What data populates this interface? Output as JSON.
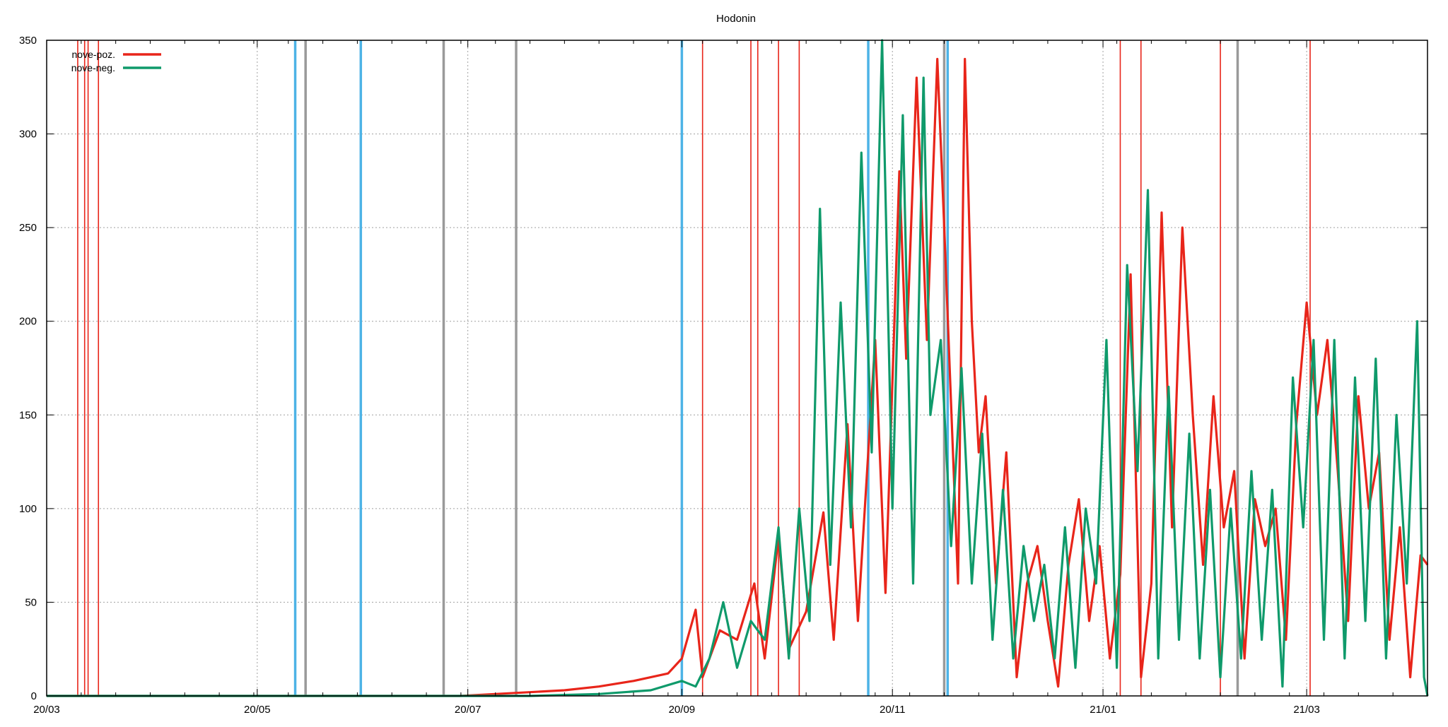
{
  "chart_data": {
    "type": "line",
    "title": "Hodonin",
    "xlabel": "",
    "ylabel": "",
    "x_domain_days": [
      0,
      400
    ],
    "ylim": [
      0,
      350
    ],
    "y_ticks": [
      0,
      50,
      100,
      150,
      200,
      250,
      300,
      350
    ],
    "x_ticks": [
      {
        "label": "20/03",
        "day": 0
      },
      {
        "label": "20/05",
        "day": 61
      },
      {
        "label": "20/07",
        "day": 122
      },
      {
        "label": "20/09",
        "day": 184
      },
      {
        "label": "20/11",
        "day": 245
      },
      {
        "label": "21/01",
        "day": 306
      },
      {
        "label": "21/03",
        "day": 365
      }
    ],
    "grid": true,
    "legend_position": "top-left",
    "series": [
      {
        "name": "nove-poz.",
        "color": "#e8251a",
        "points": [
          [
            0,
            0
          ],
          [
            10,
            0
          ],
          [
            20,
            0
          ],
          [
            30,
            0
          ],
          [
            40,
            0
          ],
          [
            50,
            0
          ],
          [
            60,
            0
          ],
          [
            70,
            0
          ],
          [
            80,
            0
          ],
          [
            90,
            0
          ],
          [
            100,
            0
          ],
          [
            110,
            0
          ],
          [
            120,
            0
          ],
          [
            130,
            1
          ],
          [
            140,
            2
          ],
          [
            150,
            3
          ],
          [
            160,
            5
          ],
          [
            170,
            8
          ],
          [
            180,
            12
          ],
          [
            184,
            20
          ],
          [
            188,
            46
          ],
          [
            190,
            10
          ],
          [
            195,
            35
          ],
          [
            200,
            30
          ],
          [
            205,
            60
          ],
          [
            208,
            20
          ],
          [
            212,
            85
          ],
          [
            215,
            25
          ],
          [
            220,
            45
          ],
          [
            225,
            98
          ],
          [
            228,
            30
          ],
          [
            232,
            145
          ],
          [
            235,
            40
          ],
          [
            240,
            190
          ],
          [
            243,
            55
          ],
          [
            247,
            280
          ],
          [
            249,
            180
          ],
          [
            252,
            330
          ],
          [
            255,
            190
          ],
          [
            258,
            340
          ],
          [
            260,
            250
          ],
          [
            264,
            60
          ],
          [
            266,
            340
          ],
          [
            268,
            200
          ],
          [
            270,
            130
          ],
          [
            272,
            160
          ],
          [
            275,
            60
          ],
          [
            278,
            130
          ],
          [
            281,
            10
          ],
          [
            284,
            60
          ],
          [
            287,
            80
          ],
          [
            290,
            40
          ],
          [
            293,
            5
          ],
          [
            296,
            70
          ],
          [
            299,
            105
          ],
          [
            302,
            40
          ],
          [
            305,
            80
          ],
          [
            308,
            20
          ],
          [
            311,
            65
          ],
          [
            314,
            225
          ],
          [
            317,
            10
          ],
          [
            320,
            60
          ],
          [
            323,
            258
          ],
          [
            326,
            90
          ],
          [
            329,
            250
          ],
          [
            332,
            150
          ],
          [
            335,
            70
          ],
          [
            338,
            160
          ],
          [
            341,
            90
          ],
          [
            344,
            120
          ],
          [
            347,
            20
          ],
          [
            350,
            105
          ],
          [
            353,
            80
          ],
          [
            356,
            100
          ],
          [
            359,
            30
          ],
          [
            362,
            145
          ],
          [
            365,
            210
          ],
          [
            368,
            150
          ],
          [
            371,
            190
          ],
          [
            374,
            120
          ],
          [
            377,
            40
          ],
          [
            380,
            160
          ],
          [
            383,
            100
          ],
          [
            386,
            130
          ],
          [
            389,
            30
          ],
          [
            392,
            90
          ],
          [
            395,
            10
          ],
          [
            398,
            75
          ],
          [
            400,
            70
          ]
        ]
      },
      {
        "name": "nove-neg.",
        "color": "#0f9a6b",
        "points": [
          [
            0,
            0
          ],
          [
            20,
            0
          ],
          [
            40,
            0
          ],
          [
            60,
            0
          ],
          [
            80,
            0
          ],
          [
            100,
            0
          ],
          [
            120,
            0
          ],
          [
            140,
            0
          ],
          [
            160,
            1
          ],
          [
            175,
            3
          ],
          [
            184,
            8
          ],
          [
            188,
            5
          ],
          [
            192,
            20
          ],
          [
            196,
            50
          ],
          [
            200,
            15
          ],
          [
            204,
            40
          ],
          [
            208,
            30
          ],
          [
            212,
            90
          ],
          [
            215,
            20
          ],
          [
            218,
            100
          ],
          [
            221,
            40
          ],
          [
            224,
            260
          ],
          [
            227,
            70
          ],
          [
            230,
            210
          ],
          [
            233,
            90
          ],
          [
            236,
            290
          ],
          [
            239,
            130
          ],
          [
            242,
            350
          ],
          [
            245,
            100
          ],
          [
            248,
            310
          ],
          [
            251,
            60
          ],
          [
            254,
            330
          ],
          [
            256,
            150
          ],
          [
            259,
            190
          ],
          [
            262,
            80
          ],
          [
            265,
            175
          ],
          [
            268,
            60
          ],
          [
            271,
            140
          ],
          [
            274,
            30
          ],
          [
            277,
            110
          ],
          [
            280,
            20
          ],
          [
            283,
            80
          ],
          [
            286,
            40
          ],
          [
            289,
            70
          ],
          [
            292,
            20
          ],
          [
            295,
            90
          ],
          [
            298,
            15
          ],
          [
            301,
            100
          ],
          [
            304,
            60
          ],
          [
            307,
            190
          ],
          [
            310,
            15
          ],
          [
            313,
            230
          ],
          [
            316,
            120
          ],
          [
            319,
            270
          ],
          [
            322,
            20
          ],
          [
            325,
            165
          ],
          [
            328,
            30
          ],
          [
            331,
            140
          ],
          [
            334,
            20
          ],
          [
            337,
            110
          ],
          [
            340,
            10
          ],
          [
            343,
            100
          ],
          [
            346,
            20
          ],
          [
            349,
            120
          ],
          [
            352,
            30
          ],
          [
            355,
            110
          ],
          [
            358,
            5
          ],
          [
            361,
            170
          ],
          [
            364,
            90
          ],
          [
            367,
            190
          ],
          [
            370,
            30
          ],
          [
            373,
            190
          ],
          [
            376,
            20
          ],
          [
            379,
            170
          ],
          [
            382,
            40
          ],
          [
            385,
            180
          ],
          [
            388,
            20
          ],
          [
            391,
            150
          ],
          [
            394,
            60
          ],
          [
            397,
            200
          ],
          [
            399,
            10
          ],
          [
            400,
            0
          ]
        ]
      }
    ],
    "vertical_markers": [
      {
        "type": "red-thin",
        "color": "#e8251a",
        "days": [
          9,
          11,
          12,
          15,
          190,
          204,
          206,
          212,
          218,
          311,
          317,
          340,
          366
        ]
      },
      {
        "type": "blue",
        "color": "#4db3e6",
        "days": [
          72,
          91,
          184,
          238,
          261
        ]
      },
      {
        "type": "gray",
        "color": "#9a9a9a",
        "days": [
          75,
          115,
          136,
          260,
          345
        ]
      }
    ]
  }
}
